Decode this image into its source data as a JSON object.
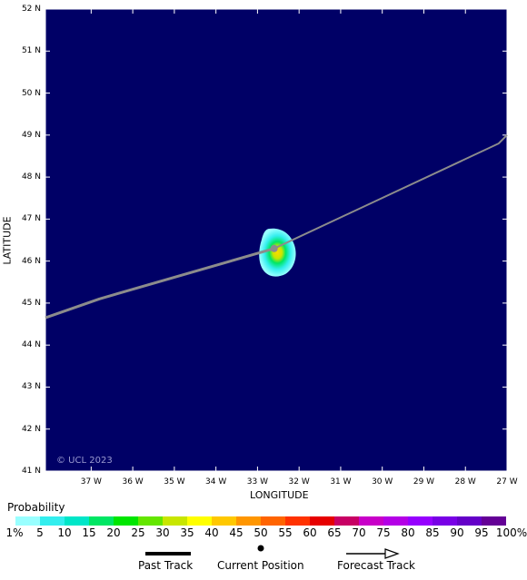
{
  "map": {
    "background_color": "#000066",
    "track_color": "#8c8c8c",
    "credit": "© UCL 2023",
    "xlabel": "LONGITUDE",
    "ylabel": "LATITUDE",
    "lat_ticks": [
      "52 N",
      "51 N",
      "50 N",
      "49 N",
      "48 N",
      "47 N",
      "46 N",
      "45 N",
      "44 N",
      "43 N",
      "42 N",
      "41 N"
    ],
    "lon_ticks": [
      "37 W",
      "36 W",
      "35 W",
      "34 W",
      "33 W",
      "32 W",
      "31 W",
      "30 W",
      "29 W",
      "28 W",
      "27 W"
    ],
    "lat_range": [
      41,
      52
    ],
    "lon_range": [
      -38.1,
      -27.0
    ],
    "past_track": [
      [
        -38.1,
        44.65
      ],
      [
        -36.8,
        45.1
      ],
      [
        -32.6,
        46.3
      ]
    ],
    "forecast_track": [
      [
        -32.6,
        46.3
      ],
      [
        -27.2,
        48.8
      ],
      [
        -27.0,
        49.0
      ]
    ],
    "current_position": [
      -32.6,
      46.3
    ]
  },
  "legend": {
    "title": "Probability",
    "labels": [
      "1%",
      "5",
      "10",
      "15",
      "20",
      "25",
      "30",
      "35",
      "40",
      "45",
      "50",
      "55",
      "60",
      "65",
      "70",
      "75",
      "80",
      "85",
      "90",
      "95",
      "100%"
    ],
    "colors": [
      "#99ffff",
      "#33eeee",
      "#00e6c8",
      "#00e664",
      "#00e600",
      "#64e600",
      "#c8e600",
      "#ffff00",
      "#ffc800",
      "#ff9600",
      "#ff6400",
      "#ff3200",
      "#e60000",
      "#c80064",
      "#c800c8",
      "#b400e6",
      "#9600ff",
      "#7800e6",
      "#6400c8",
      "#640096"
    ],
    "past_track_label": "Past Track",
    "current_position_label": "Current Position",
    "forecast_track_label": "Forecast Track"
  }
}
